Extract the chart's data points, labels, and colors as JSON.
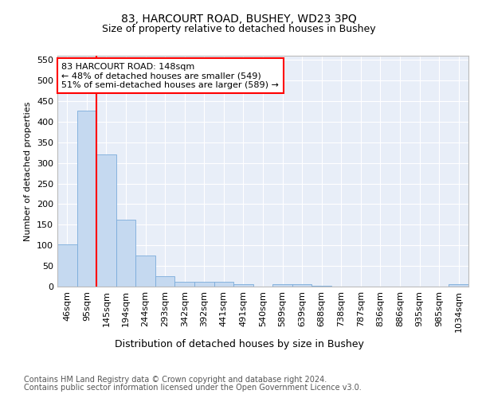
{
  "title1": "83, HARCOURT ROAD, BUSHEY, WD23 3PQ",
  "title2": "Size of property relative to detached houses in Bushey",
  "xlabel": "Distribution of detached houses by size in Bushey",
  "ylabel": "Number of detached properties",
  "footer1": "Contains HM Land Registry data © Crown copyright and database right 2024.",
  "footer2": "Contains public sector information licensed under the Open Government Licence v3.0.",
  "bar_labels": [
    "46sqm",
    "95sqm",
    "145sqm",
    "194sqm",
    "244sqm",
    "293sqm",
    "342sqm",
    "392sqm",
    "441sqm",
    "491sqm",
    "540sqm",
    "589sqm",
    "639sqm",
    "688sqm",
    "738sqm",
    "787sqm",
    "836sqm",
    "886sqm",
    "935sqm",
    "985sqm",
    "1034sqm"
  ],
  "bar_values": [
    103,
    427,
    320,
    163,
    75,
    26,
    11,
    12,
    11,
    6,
    0,
    5,
    5,
    2,
    0,
    0,
    0,
    0,
    0,
    0,
    5
  ],
  "bar_color": "#c5d9f0",
  "bar_edge_color": "#7aabda",
  "vline_color": "red",
  "vline_x_index": 2,
  "annotation_text": "83 HARCOURT ROAD: 148sqm\n← 48% of detached houses are smaller (549)\n51% of semi-detached houses are larger (589) →",
  "annotation_box_color": "white",
  "annotation_box_edge": "red",
  "ylim": [
    0,
    560
  ],
  "yticks": [
    0,
    50,
    100,
    150,
    200,
    250,
    300,
    350,
    400,
    450,
    500,
    550
  ],
  "bg_color": "#e8eef8",
  "grid_color": "white",
  "title1_fontsize": 10,
  "title2_fontsize": 9,
  "xlabel_fontsize": 9,
  "ylabel_fontsize": 8,
  "tick_fontsize": 8,
  "annot_fontsize": 8,
  "footer_fontsize": 7
}
